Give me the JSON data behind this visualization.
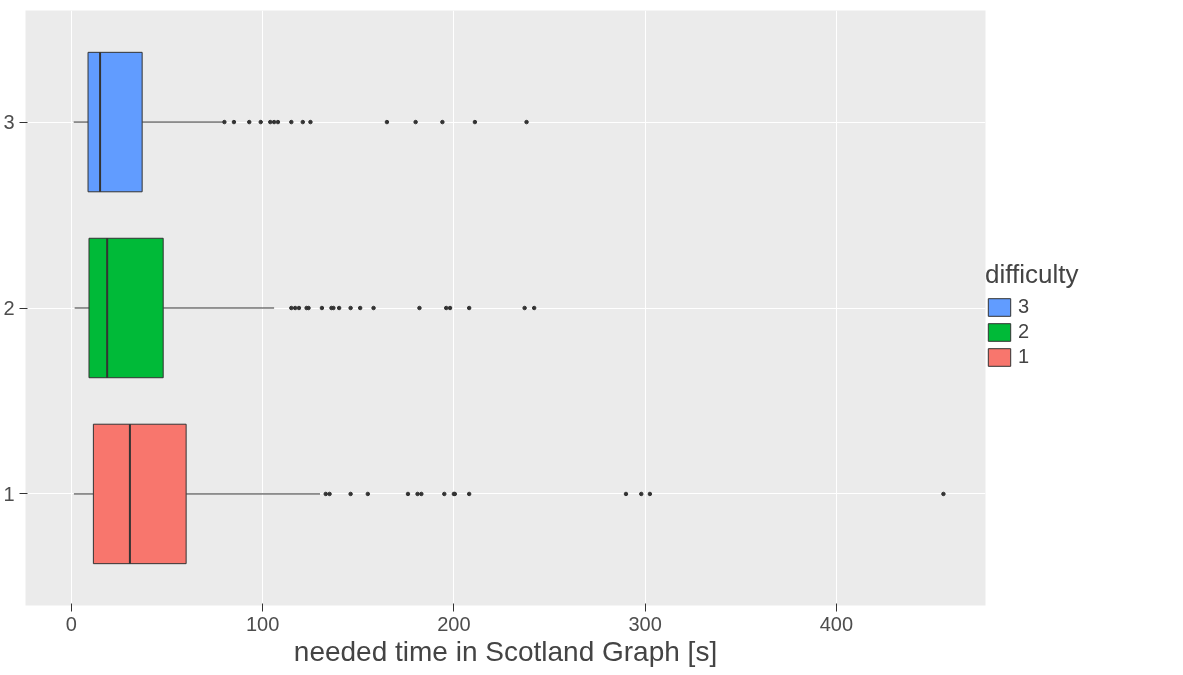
{
  "chart_data": {
    "type": "box",
    "orientation": "horizontal",
    "xlabel": "needed time in Scotland Graph [s]",
    "legend_title": "difficulty",
    "legend": "right",
    "grid": true,
    "categories": [
      "3",
      "2",
      "1"
    ],
    "xlim": [
      -24,
      478
    ],
    "xticks": [
      0,
      100,
      200,
      300,
      400
    ],
    "series": [
      {
        "name": "3",
        "color": "#619cff",
        "boxes": [
          {
            "low": 1.2,
            "q1": 8.7,
            "median": 15,
            "q3": 37,
            "high": 79,
            "outliers": [
              80,
              85,
              93,
              99,
              104,
              106,
              108,
              115,
              121,
              125,
              165,
              180,
              194,
              211,
              238
            ]
          },
          null,
          null
        ]
      },
      {
        "name": "2",
        "color": "#00ba38",
        "boxes": [
          null,
          {
            "low": 1.7,
            "q1": 9.2,
            "median": 18.7,
            "q3": 48,
            "high": 106,
            "outliers": [
              115,
              117,
              119,
              123,
              124,
              131,
              136,
              137,
              140,
              146,
              151,
              158,
              182,
              196,
              198,
              208,
              237,
              242
            ]
          },
          null
        ]
      },
      {
        "name": "1",
        "color": "#f8766d",
        "boxes": [
          null,
          null,
          {
            "low": 1.3,
            "q1": 11.5,
            "median": 30.6,
            "q3": 60,
            "high": 130,
            "outliers": [
              133,
              135,
              146,
              155,
              176,
              181,
              183,
              195,
              200,
              200.5,
              208,
              290,
              298,
              302.5,
              456
            ]
          }
        ]
      }
    ]
  }
}
